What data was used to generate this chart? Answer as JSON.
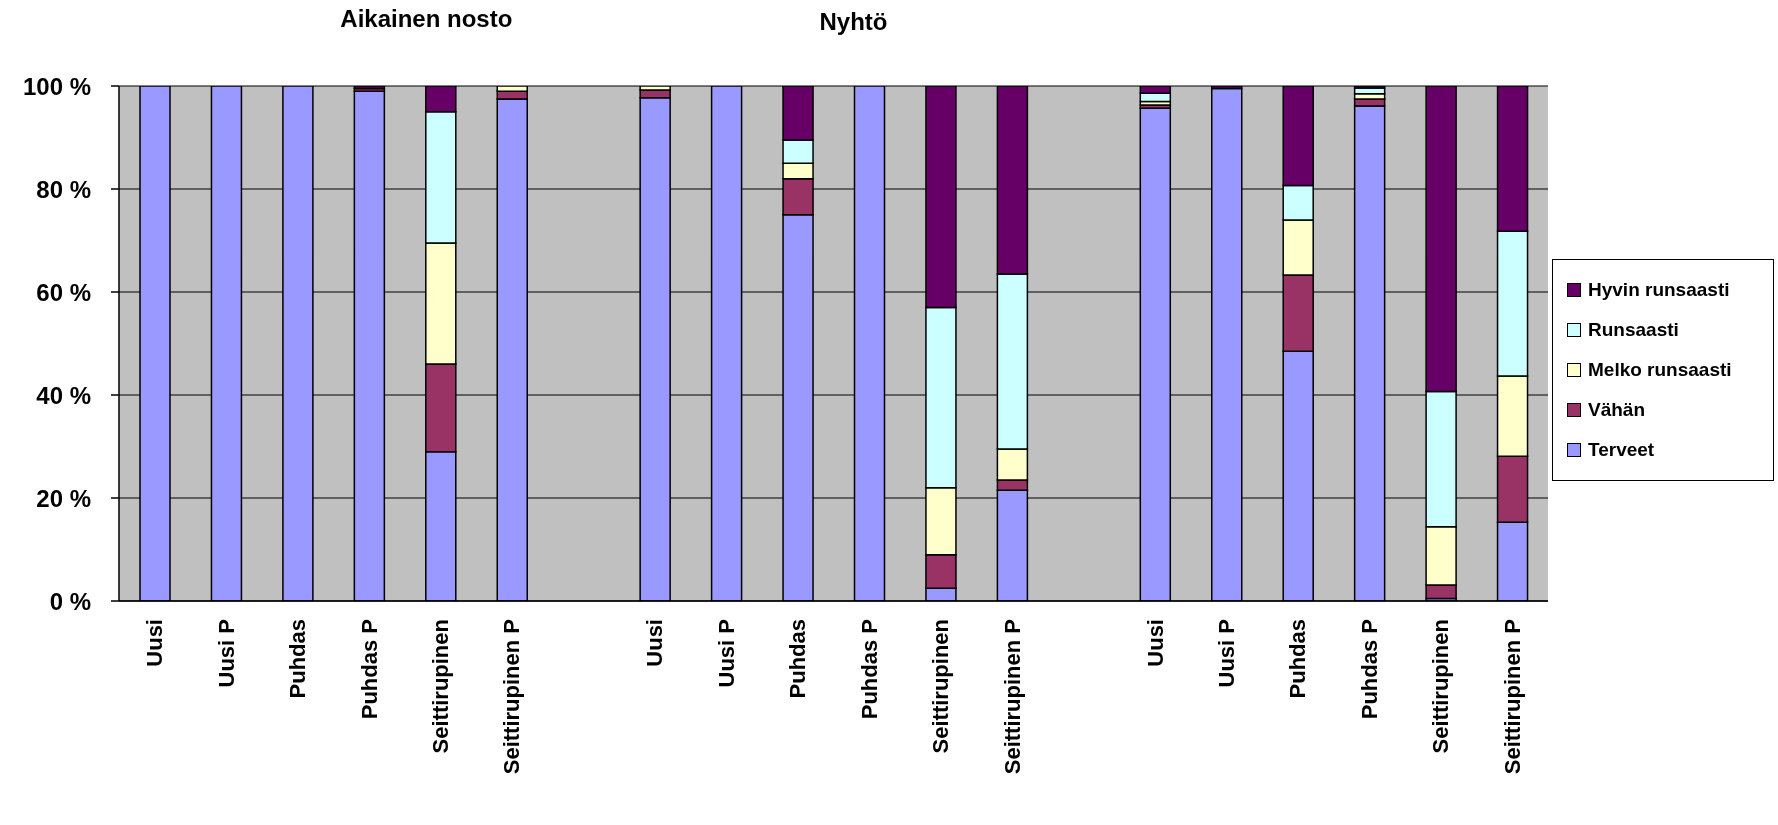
{
  "chart_data": {
    "type": "bar",
    "stacked": true,
    "annotations": [
      "Aikainen nosto",
      "Nyhtö"
    ],
    "categories": [
      "Uusi",
      "Uusi P",
      "Puhdas",
      "Puhdas P",
      "Seittirupinen",
      "Seittirupinen P",
      null,
      "Uusi",
      "Uusi P",
      "Puhdas",
      "Puhdas P",
      "Seittirupinen",
      "Seittirupinen P",
      null,
      "Uusi",
      "Uusi P",
      "Puhdas",
      "Puhdas P",
      "Seittirupinen",
      "Seittirupinen P"
    ],
    "series": [
      {
        "name": "Terveet",
        "color": "#9999ff",
        "values": [
          100,
          100,
          100,
          99,
          29,
          97.5,
          null,
          97.7,
          100,
          75,
          100,
          2.5,
          21.5,
          null,
          95.7,
          99.5,
          48.5,
          96.1,
          0.5,
          15.3
        ]
      },
      {
        "name": "Vähän",
        "color": "#993366",
        "values": [
          0,
          0,
          0,
          0.5,
          17,
          1.5,
          null,
          1.5,
          0,
          7,
          0,
          6.5,
          2,
          null,
          0.6,
          0,
          14.8,
          1.4,
          2.6,
          12.8
        ]
      },
      {
        "name": "Melko runsaasti",
        "color": "#ffffcc",
        "values": [
          0,
          0,
          0,
          0,
          23.5,
          1,
          null,
          0.8,
          0,
          3,
          0,
          13,
          6,
          null,
          0.7,
          0,
          10.7,
          1,
          11.3,
          15.6
        ]
      },
      {
        "name": "Runsaasti",
        "color": "#ccffff",
        "values": [
          0,
          0,
          0,
          0,
          25.5,
          0,
          null,
          0,
          0,
          4.5,
          0,
          35,
          34,
          null,
          1.6,
          0,
          6.7,
          1.1,
          26.3,
          28.1
        ]
      },
      {
        "name": "Hyvin runsaasti",
        "color": "#660066",
        "values": [
          0,
          0,
          0,
          0.5,
          5,
          0,
          null,
          0,
          0,
          10.5,
          0,
          43,
          36.5,
          null,
          1.4,
          0.5,
          19.3,
          0.4,
          59.3,
          28.2
        ]
      }
    ],
    "ylim": [
      0,
      100
    ],
    "yticks": [
      {
        "value": 0,
        "label": "0 %"
      },
      {
        "value": 20,
        "label": "20 %"
      },
      {
        "value": 40,
        "label": "40 %"
      },
      {
        "value": 60,
        "label": "60 %"
      },
      {
        "value": 80,
        "label": "80 %"
      },
      {
        "value": 100,
        "label": "100 %"
      }
    ],
    "grid": "y",
    "legend": "right"
  }
}
